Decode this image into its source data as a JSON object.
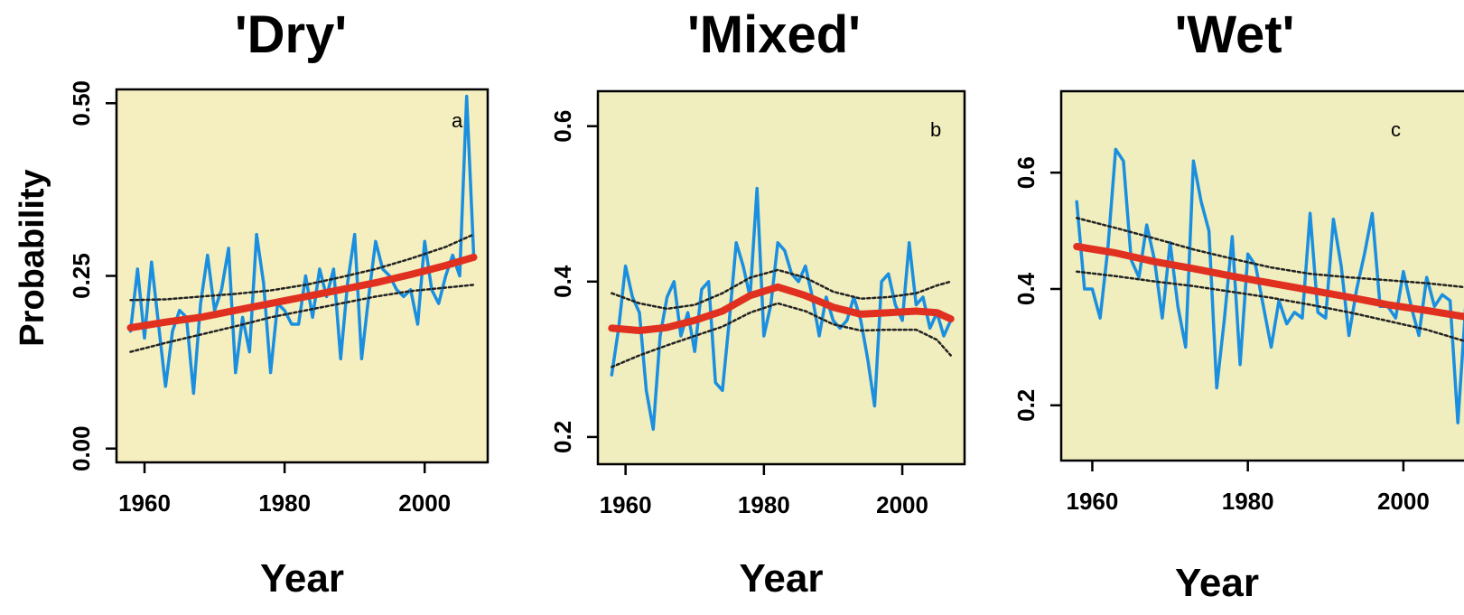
{
  "chart_data": [
    {
      "type": "line",
      "title": "'Dry'",
      "panel_label": "a",
      "xlabel": "Year",
      "ylabel": "Probability",
      "xticks": [
        1960,
        1980,
        2000
      ],
      "yticks": [
        "0.00",
        "0.25",
        "0.50"
      ],
      "ytick_values": [
        0.0,
        0.25,
        0.5
      ],
      "xlim": [
        1956,
        2009
      ],
      "ylim": [
        -0.02,
        0.52
      ],
      "background": "#f5efc0",
      "series": [
        {
          "kind": "annual",
          "color": "#1a8fe0",
          "x": [
            1958,
            1959,
            1960,
            1961,
            1962,
            1963,
            1964,
            1965,
            1966,
            1967,
            1968,
            1969,
            1970,
            1971,
            1972,
            1973,
            1974,
            1975,
            1976,
            1977,
            1978,
            1979,
            1980,
            1981,
            1982,
            1983,
            1984,
            1985,
            1986,
            1987,
            1988,
            1989,
            1990,
            1991,
            1992,
            1993,
            1994,
            1995,
            1996,
            1997,
            1998,
            1999,
            2000,
            2001,
            2002,
            2003,
            2004,
            2005,
            2006,
            2007
          ],
          "y": [
            0.17,
            0.26,
            0.16,
            0.27,
            0.18,
            0.09,
            0.17,
            0.2,
            0.19,
            0.08,
            0.21,
            0.28,
            0.2,
            0.23,
            0.29,
            0.11,
            0.19,
            0.14,
            0.31,
            0.24,
            0.11,
            0.21,
            0.2,
            0.18,
            0.18,
            0.25,
            0.19,
            0.26,
            0.22,
            0.26,
            0.13,
            0.24,
            0.31,
            0.13,
            0.22,
            0.3,
            0.26,
            0.25,
            0.23,
            0.22,
            0.23,
            0.18,
            0.3,
            0.23,
            0.21,
            0.25,
            0.28,
            0.25,
            0.51,
            0.28
          ]
        },
        {
          "kind": "trend",
          "color": "#e03020",
          "x": [
            1958,
            1963,
            1968,
            1973,
            1978,
            1983,
            1988,
            1993,
            1998,
            2003,
            2007
          ],
          "y": [
            0.175,
            0.183,
            0.19,
            0.2,
            0.21,
            0.22,
            0.23,
            0.24,
            0.252,
            0.265,
            0.277
          ]
        },
        {
          "kind": "upper-bound",
          "color": "#222222",
          "x": [
            1958,
            1963,
            1968,
            1973,
            1978,
            1983,
            1988,
            1993,
            1998,
            2003,
            2007
          ],
          "y": [
            0.215,
            0.216,
            0.22,
            0.224,
            0.229,
            0.237,
            0.248,
            0.26,
            0.275,
            0.292,
            0.31
          ]
        },
        {
          "kind": "lower-bound",
          "color": "#222222",
          "x": [
            1958,
            1963,
            1968,
            1973,
            1978,
            1983,
            1988,
            1993,
            1998,
            2003,
            2007
          ],
          "y": [
            0.14,
            0.153,
            0.165,
            0.177,
            0.19,
            0.2,
            0.21,
            0.22,
            0.228,
            0.233,
            0.237
          ]
        }
      ]
    },
    {
      "type": "line",
      "title": "'Mixed'",
      "panel_label": "b",
      "xlabel": "Year",
      "ylabel": "",
      "xticks": [
        1960,
        1980,
        2000
      ],
      "yticks": [
        "0.2",
        "0.4",
        "0.6"
      ],
      "ytick_values": [
        0.2,
        0.4,
        0.6
      ],
      "xlim": [
        1956,
        2009
      ],
      "ylim": [
        0.165,
        0.645
      ],
      "background": "#f0edbe",
      "series": [
        {
          "kind": "annual",
          "color": "#1a8fe0",
          "x": [
            1958,
            1959,
            1960,
            1961,
            1962,
            1963,
            1964,
            1965,
            1966,
            1967,
            1968,
            1969,
            1970,
            1971,
            1972,
            1973,
            1974,
            1975,
            1976,
            1977,
            1978,
            1979,
            1980,
            1981,
            1982,
            1983,
            1984,
            1985,
            1986,
            1987,
            1988,
            1989,
            1990,
            1991,
            1992,
            1993,
            1994,
            1995,
            1996,
            1997,
            1998,
            1999,
            2000,
            2001,
            2002,
            2003,
            2004,
            2005,
            2006,
            2007
          ],
          "y": [
            0.28,
            0.34,
            0.42,
            0.38,
            0.36,
            0.26,
            0.21,
            0.33,
            0.38,
            0.4,
            0.33,
            0.36,
            0.31,
            0.39,
            0.4,
            0.27,
            0.26,
            0.35,
            0.45,
            0.42,
            0.38,
            0.52,
            0.33,
            0.37,
            0.45,
            0.44,
            0.41,
            0.4,
            0.42,
            0.38,
            0.33,
            0.38,
            0.35,
            0.34,
            0.35,
            0.38,
            0.35,
            0.3,
            0.24,
            0.4,
            0.41,
            0.37,
            0.35,
            0.45,
            0.37,
            0.38,
            0.34,
            0.36,
            0.33,
            0.35
          ]
        },
        {
          "kind": "trend",
          "color": "#e03020",
          "x": [
            1958,
            1962,
            1966,
            1970,
            1974,
            1978,
            1982,
            1986,
            1990,
            1994,
            1998,
            2002,
            2005,
            2007
          ],
          "y": [
            0.34,
            0.337,
            0.341,
            0.35,
            0.362,
            0.382,
            0.393,
            0.382,
            0.367,
            0.358,
            0.36,
            0.362,
            0.36,
            0.352
          ]
        },
        {
          "kind": "upper-bound",
          "color": "#222222",
          "x": [
            1958,
            1962,
            1966,
            1970,
            1974,
            1978,
            1982,
            1986,
            1990,
            1994,
            1998,
            2002,
            2005,
            2007
          ],
          "y": [
            0.385,
            0.372,
            0.365,
            0.37,
            0.385,
            0.405,
            0.415,
            0.405,
            0.387,
            0.378,
            0.38,
            0.385,
            0.395,
            0.4
          ]
        },
        {
          "kind": "lower-bound",
          "color": "#222222",
          "x": [
            1958,
            1962,
            1966,
            1970,
            1974,
            1978,
            1982,
            1986,
            1990,
            1994,
            1998,
            2002,
            2005,
            2007
          ],
          "y": [
            0.29,
            0.305,
            0.318,
            0.33,
            0.342,
            0.36,
            0.372,
            0.362,
            0.345,
            0.337,
            0.338,
            0.338,
            0.325,
            0.305
          ]
        }
      ]
    },
    {
      "type": "line",
      "title": "'Wet'",
      "panel_label": "c",
      "xlabel": "Year",
      "ylabel": "",
      "xticks": [
        1960,
        1980,
        2000
      ],
      "yticks": [
        "0.2",
        "0.4",
        "0.6"
      ],
      "ytick_values": [
        0.2,
        0.4,
        0.6
      ],
      "xlim": [
        1956,
        2010
      ],
      "ylim": [
        0.105,
        0.74
      ],
      "background": "#f0edbe",
      "series": [
        {
          "kind": "annual",
          "color": "#1a8fe0",
          "x": [
            1958,
            1959,
            1960,
            1961,
            1962,
            1963,
            1964,
            1965,
            1966,
            1967,
            1968,
            1969,
            1970,
            1971,
            1972,
            1973,
            1974,
            1975,
            1976,
            1977,
            1978,
            1979,
            1980,
            1981,
            1982,
            1983,
            1984,
            1985,
            1986,
            1987,
            1988,
            1989,
            1990,
            1991,
            1992,
            1993,
            1994,
            1995,
            1996,
            1997,
            1998,
            1999,
            2000,
            2001,
            2002,
            2003,
            2004,
            2005,
            2006,
            2007,
            2008
          ],
          "y": [
            0.55,
            0.4,
            0.4,
            0.35,
            0.47,
            0.64,
            0.62,
            0.45,
            0.42,
            0.51,
            0.45,
            0.35,
            0.48,
            0.37,
            0.3,
            0.62,
            0.55,
            0.5,
            0.23,
            0.35,
            0.49,
            0.27,
            0.46,
            0.44,
            0.37,
            0.3,
            0.38,
            0.34,
            0.36,
            0.35,
            0.53,
            0.36,
            0.35,
            0.52,
            0.44,
            0.32,
            0.4,
            0.46,
            0.53,
            0.37,
            0.37,
            0.35,
            0.43,
            0.37,
            0.32,
            0.42,
            0.37,
            0.39,
            0.38,
            0.17,
            0.37
          ]
        },
        {
          "kind": "trend",
          "color": "#e03020",
          "x": [
            1958,
            1963,
            1968,
            1973,
            1978,
            1983,
            1988,
            1993,
            1998,
            2003,
            2008
          ],
          "y": [
            0.473,
            0.462,
            0.447,
            0.435,
            0.422,
            0.41,
            0.398,
            0.386,
            0.373,
            0.363,
            0.352
          ]
        },
        {
          "kind": "upper-bound",
          "color": "#222222",
          "x": [
            1958,
            1963,
            1968,
            1973,
            1978,
            1983,
            1988,
            1993,
            1998,
            2003,
            2008
          ],
          "y": [
            0.522,
            0.505,
            0.487,
            0.468,
            0.452,
            0.437,
            0.426,
            0.42,
            0.415,
            0.41,
            0.403
          ]
        },
        {
          "kind": "lower-bound",
          "color": "#222222",
          "x": [
            1958,
            1963,
            1968,
            1973,
            1978,
            1983,
            1988,
            1993,
            1998,
            2003,
            2008
          ],
          "y": [
            0.43,
            0.422,
            0.413,
            0.405,
            0.395,
            0.385,
            0.373,
            0.36,
            0.345,
            0.33,
            0.31
          ]
        }
      ]
    }
  ]
}
